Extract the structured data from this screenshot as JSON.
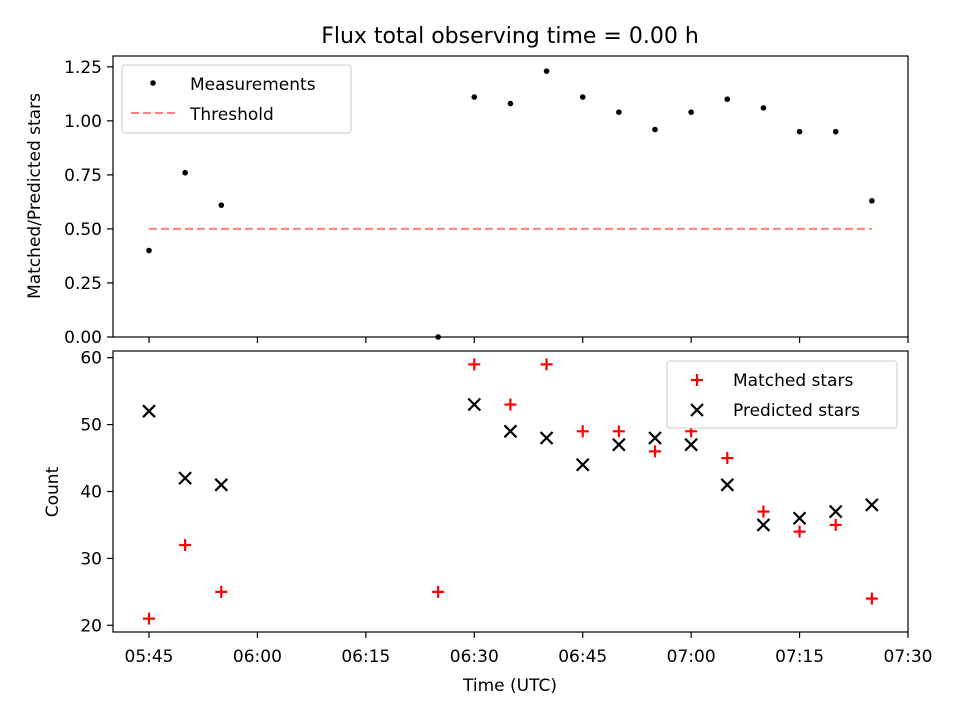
{
  "title": "Flux total observing time = 0.00 h",
  "xlabel": "Time (UTC)",
  "x_ticks": [
    "05:45",
    "06:00",
    "06:15",
    "06:30",
    "06:45",
    "07:00",
    "07:15",
    "07:30"
  ],
  "colors": {
    "measurement": "#000000",
    "threshold": "#ff7f7f",
    "matched": "#ff0000",
    "predicted": "#000000"
  },
  "chart_data": [
    {
      "type": "scatter",
      "ylabel": "Matched/Predicted stars",
      "xlim": [
        "05:45",
        "07:30"
      ],
      "ylim": [
        0,
        1.3
      ],
      "y_ticks": [
        "0.00",
        "0.25",
        "0.50",
        "0.75",
        "1.00",
        "1.25"
      ],
      "legend": {
        "position": "top-left",
        "entries": [
          "Measurements",
          "Threshold"
        ]
      },
      "series": [
        {
          "name": "Measurements",
          "x": [
            "05:45",
            "05:50",
            "05:55",
            "06:25",
            "06:30",
            "06:35",
            "06:40",
            "06:45",
            "06:50",
            "06:55",
            "07:00",
            "07:05",
            "07:10",
            "07:15",
            "07:20",
            "07:25"
          ],
          "y": [
            0.4,
            0.76,
            0.61,
            0.0,
            1.11,
            1.08,
            1.23,
            1.11,
            1.04,
            0.96,
            1.04,
            1.1,
            1.06,
            0.95,
            0.95,
            0.63
          ]
        },
        {
          "name": "Threshold",
          "x": [
            "05:45",
            "07:25"
          ],
          "y": [
            0.5,
            0.5
          ]
        }
      ]
    },
    {
      "type": "scatter",
      "ylabel": "Count",
      "xlim": [
        "05:45",
        "07:30"
      ],
      "ylim": [
        19,
        61
      ],
      "y_ticks": [
        "20",
        "30",
        "40",
        "50",
        "60"
      ],
      "legend": {
        "position": "top-right",
        "entries": [
          "Matched stars",
          "Predicted stars"
        ]
      },
      "series": [
        {
          "name": "Matched stars",
          "x": [
            "05:45",
            "05:50",
            "05:55",
            "06:25",
            "06:30",
            "06:35",
            "06:40",
            "06:45",
            "06:50",
            "06:55",
            "07:00",
            "07:05",
            "07:10",
            "07:15",
            "07:20",
            "07:25"
          ],
          "y": [
            21,
            32,
            25,
            25,
            59,
            53,
            59,
            49,
            49,
            46,
            49,
            45,
            37,
            34,
            35,
            24
          ]
        },
        {
          "name": "Predicted stars",
          "x": [
            "05:45",
            "05:50",
            "05:55",
            "06:30",
            "06:35",
            "06:40",
            "06:45",
            "06:50",
            "06:55",
            "07:00",
            "07:05",
            "07:10",
            "07:15",
            "07:20",
            "07:25"
          ],
          "y": [
            52,
            42,
            41,
            53,
            49,
            48,
            44,
            47,
            48,
            47,
            41,
            35,
            36,
            37,
            38
          ]
        }
      ]
    }
  ]
}
